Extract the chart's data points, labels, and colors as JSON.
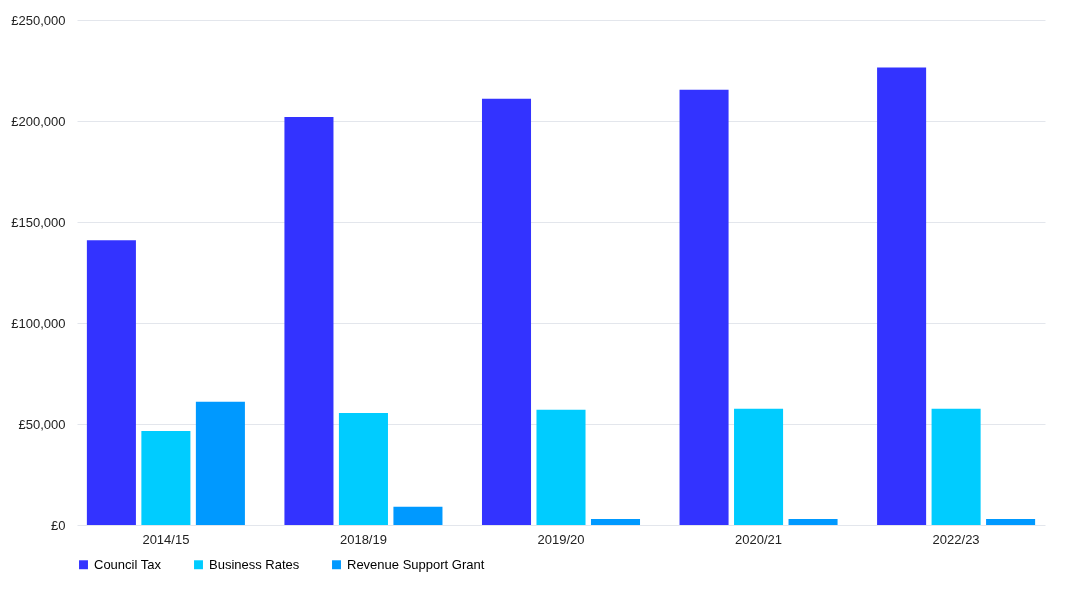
{
  "chart_data": {
    "type": "bar",
    "categories": [
      "2014/15",
      "2018/19",
      "2019/20",
      "2020/21",
      "2022/23"
    ],
    "series": [
      {
        "name": "Council Tax",
        "color": "#3333ff",
        "values": [
          141000,
          202000,
          211000,
          215500,
          226500
        ]
      },
      {
        "name": "Business Rates",
        "color": "#00ccff",
        "values": [
          46500,
          55500,
          57000,
          57500,
          57500
        ]
      },
      {
        "name": "Revenue Support Grant",
        "color": "#0099ff",
        "values": [
          61000,
          9000,
          3000,
          3000,
          3000
        ]
      }
    ],
    "ylim": [
      0,
      250000
    ],
    "yticks": [
      {
        "value": 0,
        "label": "£0"
      },
      {
        "value": 50000,
        "label": "£50,000"
      },
      {
        "value": 100000,
        "label": "£100,000"
      },
      {
        "value": 150000,
        "label": "£150,000"
      },
      {
        "value": 200000,
        "label": "£200,000"
      },
      {
        "value": 250000,
        "label": "£250,000"
      }
    ],
    "grid": "y",
    "legend": "bottom"
  }
}
